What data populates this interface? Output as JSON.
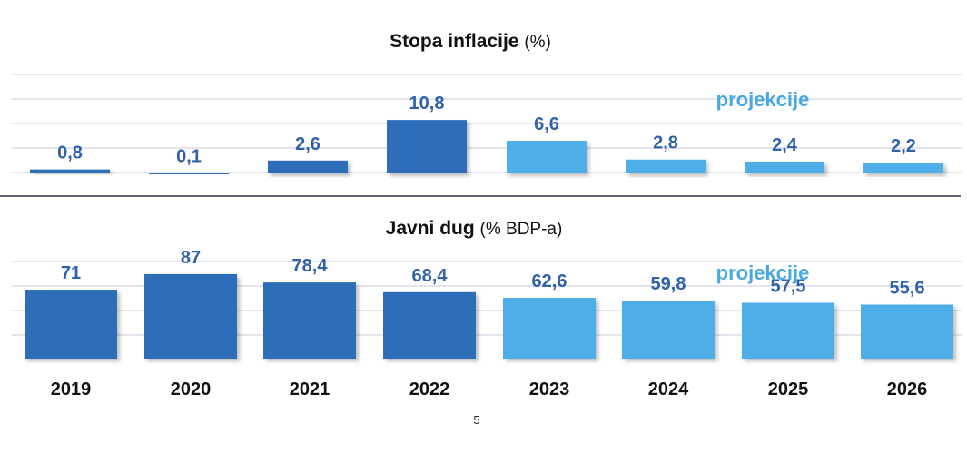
{
  "chart_data": [
    {
      "type": "bar",
      "title": "Stopa inflacije",
      "unit": "(%)",
      "categories": [
        "2019",
        "2020",
        "2021",
        "2022",
        "2023",
        "2024",
        "2025",
        "2026"
      ],
      "values": [
        0.8,
        0.1,
        2.6,
        10.8,
        6.6,
        2.8,
        2.4,
        2.2
      ],
      "labels": [
        "0,8",
        "0,1",
        "2,6",
        "10,8",
        "6,6",
        "2,8",
        "2,4",
        "2,2"
      ],
      "projection_from_index": 4,
      "annotation": "projekcije",
      "ylim": [
        0,
        20
      ],
      "grid": true
    },
    {
      "type": "bar",
      "title": "Javni dug",
      "unit": "(% BDP-a)",
      "categories": [
        "2019",
        "2020",
        "2021",
        "2022",
        "2023",
        "2024",
        "2025",
        "2026"
      ],
      "values": [
        71,
        87,
        78.4,
        68.4,
        62.6,
        59.8,
        57.5,
        55.6
      ],
      "labels": [
        "71",
        "87",
        "78,4",
        "68,4",
        "62,6",
        "59,8",
        "57,5",
        "55,6"
      ],
      "projection_from_index": 4,
      "annotation": "projekcije",
      "ylim": [
        0,
        100
      ],
      "grid": true
    }
  ],
  "colors": {
    "actual": "#2f6db7",
    "projection": "#50aee8",
    "value_text": "#2f62a8",
    "annotation": "#4aa8e0"
  },
  "page_number": "5"
}
